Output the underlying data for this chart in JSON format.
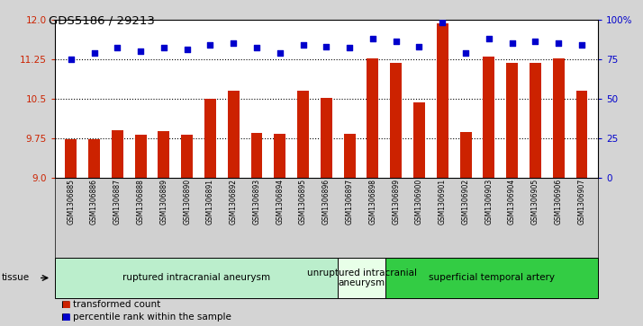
{
  "title": "GDS5186 / 29213",
  "samples": [
    "GSM1306885",
    "GSM1306886",
    "GSM1306887",
    "GSM1306888",
    "GSM1306889",
    "GSM1306890",
    "GSM1306891",
    "GSM1306892",
    "GSM1306893",
    "GSM1306894",
    "GSM1306895",
    "GSM1306896",
    "GSM1306897",
    "GSM1306898",
    "GSM1306899",
    "GSM1306900",
    "GSM1306901",
    "GSM1306902",
    "GSM1306903",
    "GSM1306904",
    "GSM1306905",
    "GSM1306906",
    "GSM1306907"
  ],
  "transformed_count": [
    9.73,
    9.73,
    9.9,
    9.82,
    9.88,
    9.82,
    10.5,
    10.65,
    9.85,
    9.83,
    10.65,
    10.52,
    9.83,
    11.27,
    11.18,
    10.43,
    11.92,
    9.87,
    11.3,
    11.18,
    11.18,
    11.27,
    10.65
  ],
  "percentile_rank": [
    75,
    79,
    82,
    80,
    82,
    81,
    84,
    85,
    82,
    79,
    84,
    83,
    82,
    88,
    86,
    83,
    98,
    79,
    88,
    85,
    86,
    85,
    84
  ],
  "bar_color": "#cc2200",
  "dot_color": "#0000cc",
  "ylim_left": [
    9.0,
    12.0
  ],
  "ylim_right": [
    0,
    100
  ],
  "yticks_left": [
    9.0,
    9.75,
    10.5,
    11.25,
    12.0
  ],
  "yticks_right": [
    0,
    25,
    50,
    75,
    100
  ],
  "yticklabels_right": [
    "0",
    "25",
    "50",
    "75",
    "100%"
  ],
  "dotted_lines": [
    9.75,
    10.5,
    11.25
  ],
  "legend_bar_label": "transformed count",
  "legend_dot_label": "percentile rank within the sample",
  "tissue_label": "tissue",
  "bg_color": "#d4d4d4",
  "plot_bg": "#ffffff",
  "xtick_bg": "#d0d0d0",
  "group_defs": [
    {
      "start": 0,
      "end": 12,
      "color": "#bbeecc",
      "label": "ruptured intracranial aneurysm"
    },
    {
      "start": 12,
      "end": 14,
      "color": "#e8ffe8",
      "label": "unruptured intracranial\naneurysm"
    },
    {
      "start": 14,
      "end": 23,
      "color": "#33cc44",
      "label": "superficial temporal artery"
    }
  ]
}
